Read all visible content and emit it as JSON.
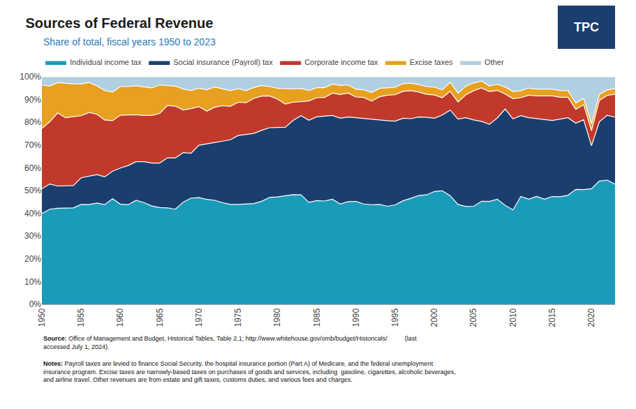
{
  "chart_data": {
    "type": "area",
    "title": "Sources of Federal Revenue",
    "subtitle": "Share of total, fiscal years 1950 to 2023",
    "stacked": true,
    "grid": true,
    "legend": "upper left",
    "x": [
      1950,
      1951,
      1952,
      1953,
      1954,
      1955,
      1956,
      1957,
      1958,
      1959,
      1960,
      1961,
      1962,
      1963,
      1964,
      1965,
      1966,
      1967,
      1968,
      1969,
      1970,
      1971,
      1972,
      1973,
      1974,
      1975,
      1976,
      1977,
      1978,
      1979,
      1980,
      1981,
      1982,
      1983,
      1984,
      1985,
      1986,
      1987,
      1988,
      1989,
      1990,
      1991,
      1992,
      1993,
      1994,
      1995,
      1996,
      1997,
      1998,
      1999,
      2000,
      2001,
      2002,
      2003,
      2004,
      2005,
      2006,
      2007,
      2008,
      2009,
      2010,
      2011,
      2012,
      2013,
      2014,
      2015,
      2016,
      2017,
      2018,
      2019,
      2020,
      2021,
      2022,
      2023
    ],
    "series": [
      {
        "name": "Individual income tax",
        "color": "#1a9bba",
        "values": [
          39.9,
          41.8,
          42.2,
          42.4,
          42.4,
          43.9,
          43.8,
          44.5,
          43.8,
          46.4,
          44.0,
          43.8,
          45.7,
          44.7,
          43.2,
          42.5,
          42.4,
          41.8,
          44.9,
          46.7,
          46.9,
          46.1,
          45.7,
          44.7,
          43.9,
          43.9,
          44.2,
          44.3,
          45.3,
          47.0,
          47.2,
          47.7,
          48.2,
          48.1,
          44.8,
          45.6,
          45.4,
          46.2,
          44.1,
          45.1,
          45.2,
          44.1,
          43.7,
          43.9,
          43.1,
          43.7,
          45.5,
          46.6,
          47.8,
          48.1,
          49.6,
          49.9,
          46.3,
          43.9,
          43.0,
          43.1,
          45.3,
          45.2,
          46.2,
          43.5,
          41.5,
          47.4,
          46.2,
          47.4,
          46.2,
          47.4,
          47.3,
          47.9,
          50.5,
          50.4,
          50.8,
          54.2,
          54.6,
          52.8
        ]
      },
      {
        "name": "Social insurance (Payroll) tax",
        "color": "#1a3f6f",
        "values": [
          10.9,
          11.1,
          9.8,
          9.8,
          9.8,
          11.7,
          12.5,
          12.5,
          12.2,
          12.1,
          15.9,
          17.2,
          17.0,
          18.0,
          18.9,
          19.6,
          22.0,
          22.5,
          21.8,
          19.7,
          23.0,
          24.5,
          25.4,
          27.0,
          28.4,
          30.3,
          30.5,
          30.8,
          31.2,
          30.6,
          30.5,
          30.1,
          32.6,
          34.8,
          36.1,
          36.8,
          37.3,
          36.8,
          37.7,
          37.2,
          36.8,
          37.5,
          37.4,
          37.1,
          37.6,
          36.8,
          36.3,
          35.0,
          34.5,
          34.1,
          32.2,
          33.3,
          36.5,
          37.5,
          39.0,
          37.9,
          35.1,
          33.9,
          35.7,
          42.3,
          40.0,
          35.5,
          35.8,
          34.2,
          34.8,
          33.4,
          34.1,
          34.1,
          29.1,
          30.7,
          18.9,
          26.0,
          28.5,
          29.4
        ]
      },
      {
        "name": "Corporate income tax",
        "color": "#c0392b",
        "values": [
          26.5,
          27.3,
          32.1,
          29.8,
          30.3,
          27.3,
          28.0,
          26.5,
          25.0,
          22.2,
          23.2,
          22.2,
          20.6,
          20.3,
          20.9,
          21.8,
          23.0,
          22.8,
          18.7,
          19.6,
          17.0,
          14.3,
          15.5,
          15.6,
          14.7,
          14.6,
          13.9,
          15.4,
          15.0,
          14.0,
          12.5,
          10.2,
          8.0,
          6.2,
          8.5,
          8.4,
          8.2,
          9.8,
          10.4,
          10.5,
          9.1,
          9.3,
          8.0,
          10.2,
          11.2,
          11.6,
          11.8,
          12.3,
          11.0,
          10.1,
          10.2,
          7.6,
          8.0,
          7.5,
          10.1,
          12.9,
          14.7,
          14.4,
          12.1,
          6.6,
          8.9,
          7.9,
          9.9,
          10.0,
          10.6,
          10.8,
          9.6,
          9.0,
          6.1,
          6.6,
          6.6,
          9.4,
          8.7,
          10.1
        ]
      },
      {
        "name": "Excise taxes",
        "color": "#e8a020",
        "values": [
          19.1,
          15.7,
          13.3,
          15.1,
          14.4,
          13.9,
          13.2,
          12.5,
          13.0,
          12.6,
          12.6,
          12.5,
          12.8,
          12.5,
          12.1,
          12.5,
          8.7,
          8.8,
          9.2,
          8.0,
          8.1,
          9.4,
          8.9,
          7.4,
          6.9,
          5.9,
          5.3,
          4.8,
          4.6,
          4.1,
          4.7,
          6.8,
          5.9,
          5.8,
          4.6,
          4.4,
          4.3,
          4.0,
          4.0,
          3.6,
          3.4,
          3.4,
          3.8,
          3.7,
          3.3,
          3.3,
          3.4,
          3.3,
          3.3,
          3.4,
          3.4,
          3.5,
          3.9,
          3.9,
          3.8,
          3.4,
          3.0,
          2.5,
          2.7,
          3.1,
          3.1,
          3.1,
          3.1,
          3.0,
          3.0,
          3.0,
          3.0,
          2.9,
          2.8,
          2.8,
          3.1,
          2.7,
          2.4,
          2.5
        ]
      },
      {
        "name": "Other",
        "color": "#b0cfe0",
        "values": [
          3.6,
          4.1,
          2.6,
          2.9,
          3.1,
          3.2,
          2.5,
          4.0,
          6.0,
          6.7,
          4.3,
          4.3,
          3.9,
          4.5,
          4.9,
          3.6,
          3.9,
          4.1,
          5.4,
          6.0,
          5.0,
          5.7,
          4.5,
          5.3,
          6.1,
          5.3,
          6.1,
          4.7,
          3.9,
          4.3,
          5.1,
          5.2,
          5.3,
          5.1,
          6.0,
          4.8,
          4.8,
          3.2,
          3.8,
          3.6,
          5.5,
          5.7,
          6.9,
          5.1,
          4.8,
          4.6,
          3.0,
          2.8,
          3.4,
          4.3,
          4.6,
          5.7,
          2.3,
          7.2,
          4.1,
          2.7,
          1.9,
          4.0,
          3.3,
          4.5,
          6.5,
          6.1,
          5.0,
          5.4,
          5.4,
          5.4,
          6.0,
          6.1,
          11.5,
          9.5,
          20.6,
          7.7,
          5.8,
          5.2
        ]
      }
    ],
    "xlim": [
      1950,
      2023
    ],
    "xticks": [
      1950,
      1955,
      1960,
      1965,
      1970,
      1975,
      1980,
      1985,
      1990,
      1995,
      2000,
      2005,
      2010,
      2015,
      2020
    ],
    "ylim": [
      0,
      100
    ],
    "yticks": [
      {
        "value": 0,
        "label": "0%"
      },
      {
        "value": 10,
        "label": "10%"
      },
      {
        "value": 20,
        "label": "20%"
      },
      {
        "value": 30,
        "label": "30%"
      },
      {
        "value": 40,
        "label": "40%"
      },
      {
        "value": 50,
        "label": "50%"
      },
      {
        "value": 60,
        "label": "60%"
      },
      {
        "value": 70,
        "label": "70%"
      },
      {
        "value": 80,
        "label": "80%"
      },
      {
        "value": 90,
        "label": "90%"
      },
      {
        "value": 100,
        "label": "100%"
      }
    ],
    "annotations": [
      {
        "label": "Source:",
        "text": " Office of Management and Budget, Historical Tables, Table 2.1; http://www.whitehouse.gov/omb/budget/Historicals/          (last\naccessed July 1, 2024)."
      },
      {
        "label": "Notes:",
        "text": " Payroll taxes are levied to finance Social Security, the hospital insurance portion (Part A) of Medicare, and the federal unemployment\ninsurance program. Excise taxes are narrowly-based taxes on purchases of goods and services, including  gasoline, cigarettes, alcoholic beverages,\nand airline travel. Other revenues are from estate and gift taxes, customs duties, and various fees and charges."
      },
      {
        "text": "TPC"
      }
    ]
  }
}
